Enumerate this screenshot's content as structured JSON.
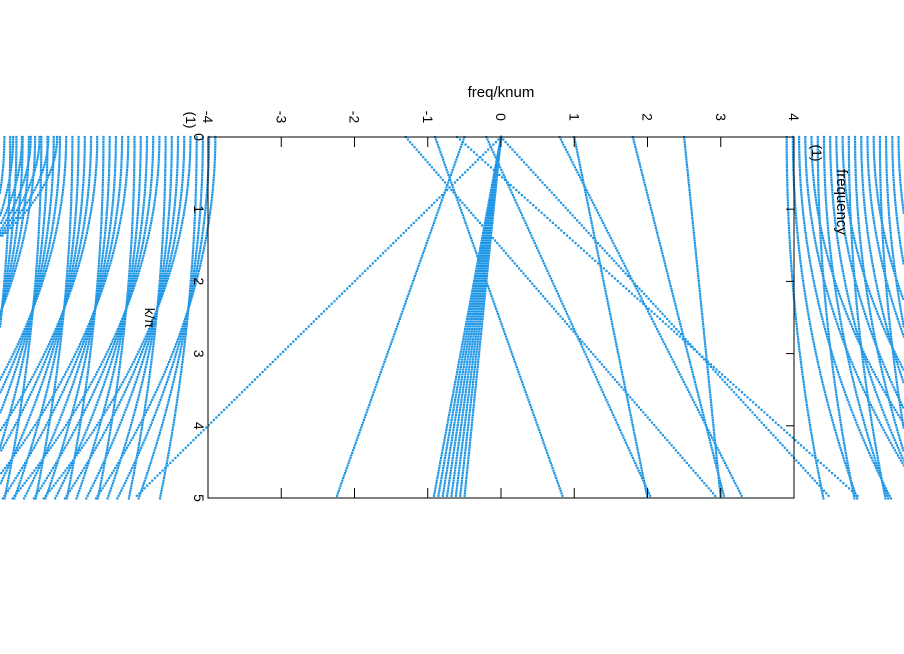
{
  "chart_data": {
    "type": "scatter",
    "orientation": "rotated-90",
    "xlabel": "freq/knum",
    "ylabel": "frequency",
    "ylabel_unit": "(1)",
    "y_axis_unit_left": "(1)",
    "xlim": [
      -4,
      4
    ],
    "ylim": [
      0,
      5
    ],
    "x_ticks": [
      "-4",
      "-3",
      "-2",
      "-1",
      "0",
      "1",
      "2",
      "3",
      "4"
    ],
    "y_ticks": [
      "0",
      "1",
      "2",
      "3",
      "4",
      "5"
    ],
    "inner_label": "k/π",
    "grid": false,
    "legend": "none",
    "marker_color": "#1e96e6",
    "marker": "small-dots",
    "series": [
      {
        "k_range": [
          0,
          5
        ],
        "freq_at_k0": 0.0,
        "slope_per_k": -0.1,
        "fan_lines": 8
      },
      {
        "k_range": [
          0,
          5
        ],
        "freq_at_k0": 0.0,
        "slope_per_k": 0.9
      },
      {
        "k_range": [
          0,
          5
        ],
        "freq_at_k0": 0.0,
        "slope_per_k": -1.0
      },
      {
        "k_range": [
          0,
          5
        ],
        "freq_at_k0": -0.2,
        "slope_per_k": 0.45
      },
      {
        "k_range": [
          0,
          5
        ],
        "freq_at_k0": -0.6,
        "slope_per_k": 1.1
      },
      {
        "k_range": [
          0,
          5
        ],
        "freq_at_k0": 0.8,
        "slope_per_k": 0.5
      },
      {
        "k_range": [
          0,
          5
        ],
        "freq_at_k0": -0.5,
        "slope_per_k": -0.35
      },
      {
        "k_range": [
          0,
          5
        ],
        "freq_at_k0": -0.9,
        "slope_per_k": 0.35
      },
      {
        "k_range": [
          0,
          5
        ],
        "freq_at_k0": -1.3,
        "slope_per_k": 0.85
      },
      {
        "k_range": [
          0,
          5
        ],
        "freq_at_k0": 1.0,
        "slope_per_k": 0.2
      },
      {
        "k_range": [
          0,
          5
        ],
        "freq_at_k0": 1.8,
        "slope_per_k": 0.25
      },
      {
        "k_range": [
          0,
          5
        ],
        "freq_at_k0": 2.5,
        "slope_per_k": 0.1
      }
    ],
    "dense_band_left": {
      "freq_range": [
        -6.7,
        -3.9
      ],
      "k_range": [
        0,
        5
      ]
    },
    "dense_band_right": {
      "freq_range": [
        3.9,
        6.7
      ],
      "k_range": [
        0,
        5
      ]
    }
  }
}
